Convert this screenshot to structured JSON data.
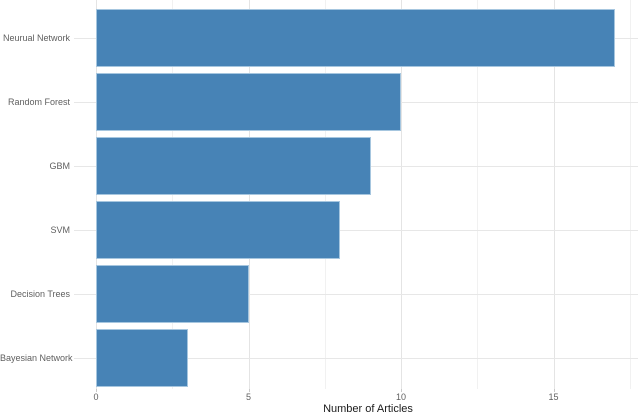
{
  "chart_data": {
    "type": "bar",
    "orientation": "horizontal",
    "title": "",
    "xlabel": "Number of Articles",
    "ylabel": "",
    "categories": [
      "Neurual Network",
      "Random Forest",
      "GBM",
      "SVM",
      "Decision Trees",
      "Bayesian Network"
    ],
    "values": [
      17,
      10,
      9,
      8,
      5,
      3
    ],
    "series": [
      {
        "name": "Number of Articles",
        "values": [
          17,
          10,
          9,
          8,
          5,
          3
        ]
      }
    ],
    "x_major_ticks": [
      0,
      5,
      10,
      15
    ],
    "x_minor_ticks": [
      2.5,
      7.5,
      12.5,
      17.5
    ],
    "xlim": [
      0,
      17.8
    ],
    "grid": "major-and-minor",
    "legend_position": "none",
    "colors": {
      "bar_fill": "#4783B6",
      "bar_border": "#A6C6DF",
      "grid_major": "#e4e4e4",
      "grid_minor": "#f1f1f1",
      "tick_mark": "#c9c9c9",
      "axis_text": "#5f5f5f",
      "axis_title": "#1a1a1a",
      "background": "#ffffff"
    }
  }
}
